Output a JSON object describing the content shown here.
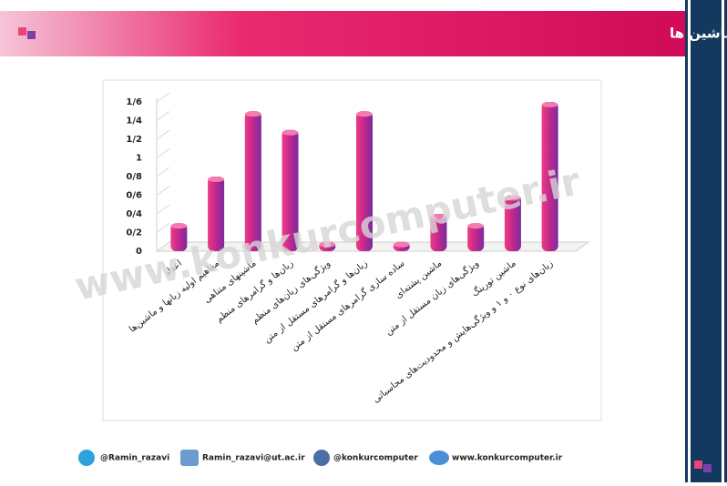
{
  "header": {
    "title": "نمودار میله ای درجه اهمیت فصل به فصل نظریه زبان ها و ماشین ها"
  },
  "chart_data": {
    "type": "bar",
    "categories": [
      "اعداد",
      "مفاهیم اولیه زبانها و ماشین‌ها",
      "ماشینهای متناهی",
      "زبان‌ها و گرامرهای منظم",
      "ویژگی‌های زبان‌های منظم",
      "زبان‌ها و گرامرهای مستقل از متن",
      "ساده سازی گرامرهای مستقل از متن",
      "ماشین پشته‌ای",
      "ویژگی‌های زبان مستقل از متن",
      "ماشین تورینگ",
      "زبان‌های نوع ۰ و ۱ و ویژگی‌هایش و محدودیت‌های محاسباتی"
    ],
    "values": [
      0.3,
      0.8,
      1.5,
      1.3,
      0.1,
      1.5,
      0.1,
      0.4,
      0.3,
      0.6,
      1.6
    ],
    "color": "#e8267a",
    "ylim": [
      0,
      1.6
    ],
    "yticks": [
      0,
      {
        "value": 0.2,
        "label": "0/2"
      },
      {
        "value": 0.4,
        "label": "0/4"
      },
      {
        "value": 0.6,
        "label": "0/6"
      },
      {
        "value": 0.8,
        "label": "0/8"
      },
      1,
      {
        "value": 1.2,
        "label": "1/2"
      },
      {
        "value": 1.4,
        "label": "1/4"
      },
      {
        "value": 1.6,
        "label": "1/6"
      }
    ]
  },
  "watermark": "www.konkurcomputer.ir",
  "footer": {
    "telegram": "@Ramin_razavi",
    "email": "Ramin_razavi@ut.ac.ir",
    "instagram": "@konkurcomputer",
    "website": "www.konkurcomputer.ir"
  }
}
